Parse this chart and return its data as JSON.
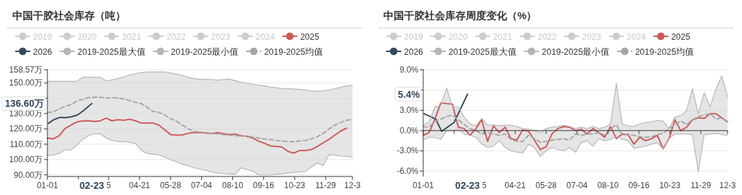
{
  "chart_data": [
    {
      "type": "line",
      "title": "中国干胶社会库存（吨）",
      "legend": "top",
      "grid": "y",
      "marker": "none",
      "x": [
        "--01-01",
        "--01-08",
        "--01-15",
        "--01-22",
        "--01-29",
        "--02-05",
        "--02-12",
        "--02-19",
        "--02-26",
        "--03-05",
        "--03-12",
        "--03-19",
        "--03-26",
        "--04-02",
        "--04-09",
        "--04-16",
        "--04-23",
        "--04-30",
        "--05-07",
        "--05-14",
        "--05-21",
        "--05-28",
        "--06-04",
        "--06-11",
        "--06-18",
        "--06-25",
        "--07-02",
        "--07-09",
        "--07-16",
        "--07-23",
        "--07-30",
        "--08-06",
        "--08-13",
        "--08-20",
        "--08-27",
        "--09-03",
        "--09-10",
        "--09-17",
        "--09-24",
        "--10-01",
        "--10-08",
        "--10-15",
        "--10-22",
        "--10-29",
        "--11-05",
        "--11-12",
        "--11-19",
        "--11-26",
        "--12-03",
        "--12-10",
        "--12-17",
        "--12-24",
        "--12-31"
      ],
      "xlim": [
        "--01-01",
        "--12-31"
      ],
      "xticks": [
        {
          "value": "--01-01",
          "label": "01-01"
        },
        {
          "value": "--02-07",
          "label": null
        },
        {
          "value": "--03-15",
          "label": "5"
        },
        {
          "value": "--04-21",
          "label": "04-21"
        },
        {
          "value": "--05-28",
          "label": "05-28"
        },
        {
          "value": "--07-04",
          "label": "07-04"
        },
        {
          "value": "--08-10",
          "label": "08-10"
        },
        {
          "value": "--09-16",
          "label": "09-16"
        },
        {
          "value": "--10-23",
          "label": "10-23"
        },
        {
          "value": "--11-29",
          "label": "11-29"
        },
        {
          "value": "--12-31",
          "label": "12-3"
        }
      ],
      "ylim": [
        88.9,
        158.57
      ],
      "yticks": [
        {
          "value": 90,
          "label": "90.00万"
        },
        {
          "value": 100,
          "label": "100.00万"
        },
        {
          "value": 110,
          "label": "110.00万"
        },
        {
          "value": 120,
          "label": "120.00万"
        },
        {
          "value": 130,
          "label": "130.00万"
        },
        {
          "value": 140,
          "label": null
        },
        {
          "value": 150,
          "label": "150.00万"
        },
        {
          "value": 158.57,
          "label": "158.57万"
        }
      ],
      "annotations": [
        "02-23",
        "136.60万"
      ],
      "series": [
        {
          "name": "2019",
          "color": "#cccccc",
          "values": [
            null,
            null,
            null,
            null,
            null,
            null,
            null,
            null,
            null,
            null,
            null,
            null,
            null,
            null,
            null,
            null,
            null,
            null,
            null,
            null,
            null,
            null,
            null,
            null,
            null,
            null,
            null,
            null,
            null,
            null,
            null,
            null,
            null,
            null,
            null,
            null,
            null,
            null,
            null,
            null,
            null,
            null,
            null,
            null,
            null,
            null,
            null,
            null,
            null,
            null,
            null,
            null,
            null
          ]
        },
        {
          "name": "2020",
          "color": "#cccccc",
          "values": [
            null,
            null,
            null,
            null,
            null,
            null,
            null,
            null,
            null,
            null,
            null,
            null,
            null,
            null,
            null,
            null,
            null,
            null,
            null,
            null,
            null,
            null,
            null,
            null,
            null,
            null,
            null,
            null,
            null,
            null,
            null,
            null,
            null,
            null,
            null,
            null,
            null,
            null,
            null,
            null,
            null,
            null,
            null,
            null,
            null,
            null,
            null,
            null,
            null,
            null,
            null,
            null,
            null
          ]
        },
        {
          "name": "2021",
          "color": "#cccccc",
          "values": [
            null,
            null,
            null,
            null,
            null,
            null,
            null,
            null,
            null,
            null,
            null,
            null,
            null,
            null,
            null,
            null,
            null,
            null,
            null,
            null,
            null,
            null,
            null,
            null,
            null,
            null,
            null,
            null,
            null,
            null,
            null,
            null,
            null,
            null,
            null,
            null,
            null,
            null,
            null,
            null,
            null,
            null,
            null,
            null,
            null,
            null,
            null,
            null,
            null,
            null,
            null,
            null,
            null
          ]
        },
        {
          "name": "2022",
          "color": "#cccccc",
          "values": [
            null,
            null,
            null,
            null,
            null,
            null,
            null,
            null,
            null,
            null,
            null,
            null,
            null,
            null,
            null,
            null,
            null,
            null,
            null,
            null,
            null,
            null,
            null,
            null,
            null,
            null,
            null,
            null,
            null,
            null,
            null,
            null,
            null,
            null,
            null,
            null,
            null,
            null,
            null,
            null,
            null,
            null,
            null,
            null,
            null,
            null,
            null,
            null,
            null,
            null,
            null,
            null,
            null
          ]
        },
        {
          "name": "2023",
          "color": "#cccccc",
          "values": [
            null,
            null,
            null,
            null,
            null,
            null,
            null,
            null,
            null,
            null,
            null,
            null,
            null,
            null,
            null,
            null,
            null,
            null,
            null,
            null,
            null,
            null,
            null,
            null,
            null,
            null,
            null,
            null,
            null,
            null,
            null,
            null,
            null,
            null,
            null,
            null,
            null,
            null,
            null,
            null,
            null,
            null,
            null,
            null,
            null,
            null,
            null,
            null,
            null,
            null,
            null,
            null,
            null
          ]
        },
        {
          "name": "2024",
          "color": "#cccccc",
          "values": [
            null,
            null,
            null,
            null,
            null,
            null,
            null,
            null,
            null,
            null,
            null,
            null,
            null,
            null,
            null,
            null,
            null,
            null,
            null,
            null,
            null,
            null,
            null,
            null,
            null,
            null,
            null,
            null,
            null,
            null,
            null,
            null,
            null,
            null,
            null,
            null,
            null,
            null,
            null,
            null,
            null,
            null,
            null,
            null,
            null,
            null,
            null,
            null,
            null,
            null,
            null,
            null,
            null
          ]
        },
        {
          "name": "2025",
          "color": "#cc5a57",
          "values": [
            114.0,
            113.5,
            115.5,
            120.2,
            122.5,
            124.5,
            125.2,
            125.3,
            124.9,
            125.2,
            127.0,
            125.3,
            126.0,
            125.6,
            126.3,
            125.3,
            123.8,
            123.8,
            123.8,
            122.5,
            119.4,
            116.3,
            115.9,
            116.0,
            117.1,
            117.6,
            117.6,
            117.4,
            116.9,
            117.6,
            116.8,
            116.3,
            116.6,
            115.5,
            115.1,
            114.0,
            112.0,
            110.6,
            108.9,
            108.5,
            108.1,
            105.3,
            104.2,
            105.9,
            105.9,
            106.5,
            108.5,
            110.9,
            113.2,
            115.9,
            118.6,
            120.5,
            null
          ]
        },
        {
          "name": "2026",
          "color": "#34495e",
          "x": [
            "--01-02",
            "--01-09",
            "--01-16",
            "--01-23",
            "--01-30",
            "--02-06",
            "--02-13",
            "--02-23"
          ],
          "values": [
            123.6,
            126.1,
            127.5,
            127.3,
            128.0,
            129.1,
            131.9,
            136.6
          ]
        },
        {
          "name": "2019-2025最大值",
          "type": "line",
          "color": "#b5b5b5",
          "values": [
            151,
            151,
            151,
            151,
            151,
            151,
            153.7,
            153.7,
            153.7,
            153.7,
            151.3,
            152,
            152.8,
            154,
            155.2,
            156,
            156.7,
            157.2,
            157.2,
            157.2,
            157.2,
            156.5,
            155.8,
            155,
            153.7,
            152.8,
            152.3,
            152.5,
            152.2,
            151.8,
            152.2,
            152.5,
            151.5,
            150.5,
            149.8,
            149.2,
            148.5,
            148,
            147.3,
            146.9,
            146.4,
            146.2,
            146,
            145.8,
            145.3,
            144.8,
            144.6,
            144.8,
            145.5,
            146.2,
            147.2,
            148,
            148.5
          ]
        },
        {
          "name": "2019-2025最小值",
          "type": "line",
          "color": "#b5b5b5",
          "values": [
            102.8,
            102.8,
            104,
            106.2,
            106.2,
            109.3,
            113.2,
            115.5,
            116.8,
            116.8,
            114,
            112.5,
            111.7,
            111.7,
            111.3,
            110.5,
            106,
            103.9,
            103.5,
            103.1,
            101.5,
            100,
            98.4,
            97,
            95.8,
            94.6,
            93.8,
            93,
            91.8,
            91.2,
            90.8,
            90.6,
            90.4,
            94.6,
            93.5,
            92.5,
            89.9,
            89.9,
            89.9,
            90.3,
            90.7,
            91.2,
            91.5,
            92,
            92.2,
            95,
            97.7,
            96.1,
            103.1,
            102.8,
            102.3,
            102,
            101.6
          ]
        },
        {
          "name": "2019-2025均值",
          "color": "#a6a6a6",
          "line_style": "dashed",
          "lower": [
            102.8,
            102.8,
            104,
            106.2,
            106.2,
            109.3,
            113.2,
            115.5,
            116.8,
            116.8,
            114,
            112.5,
            111.7,
            111.7,
            111.3,
            110.5,
            106,
            103.9,
            103.5,
            103.1,
            101.5,
            100,
            98.4,
            97,
            95.8,
            94.6,
            93.8,
            93,
            91.8,
            91.2,
            90.8,
            90.6,
            90.4,
            94.6,
            93.5,
            92.5,
            89.9,
            89.9,
            89.9,
            90.3,
            90.7,
            91.2,
            91.5,
            92,
            92.2,
            95,
            97.7,
            96.1,
            103.1,
            102.8,
            102.3,
            102,
            101.6
          ],
          "upper": [
            151,
            151,
            151,
            151,
            151,
            151,
            153.7,
            153.7,
            153.7,
            153.7,
            151.3,
            152,
            152.8,
            154,
            155.2,
            156,
            156.7,
            157.2,
            157.2,
            157.2,
            157.2,
            156.5,
            155.8,
            155,
            153.7,
            152.8,
            152.3,
            152.5,
            152.2,
            151.8,
            152.2,
            152.5,
            151.5,
            150.5,
            149.8,
            149.2,
            148.5,
            148,
            147.3,
            146.9,
            146.4,
            146.2,
            146,
            145.8,
            145.3,
            144.8,
            144.6,
            144.8,
            145.5,
            146.2,
            147.2,
            148,
            148.5
          ],
          "values": [
            130.8,
            131.1,
            133.0,
            134.6,
            135.8,
            138.1,
            139.2,
            140.4,
            140.7,
            140.7,
            140.1,
            140.4,
            140.1,
            139.6,
            138.5,
            137.3,
            136.5,
            134.2,
            131.4,
            130.8,
            129.1,
            126.7,
            124.9,
            122.5,
            120.2,
            118.3,
            117.9,
            117.4,
            117.1,
            116.8,
            116.3,
            115.9,
            115.5,
            115.5,
            115.2,
            114.8,
            114.0,
            113.5,
            113.1,
            112.4,
            112.1,
            111.7,
            111.7,
            112.1,
            112.4,
            113.5,
            114.8,
            117.1,
            119.9,
            122.5,
            124.1,
            125.6,
            126.2
          ]
        }
      ]
    },
    {
      "type": "line",
      "title": "中国干胶社会库存周度变化（%）",
      "legend": "top",
      "grid": "y",
      "marker": "none",
      "x": [
        "--01-01",
        "--01-08",
        "--01-15",
        "--01-22",
        "--01-29",
        "--02-05",
        "--02-12",
        "--02-19",
        "--02-26",
        "--03-05",
        "--03-12",
        "--03-19",
        "--03-26",
        "--04-02",
        "--04-09",
        "--04-16",
        "--04-23",
        "--04-30",
        "--05-07",
        "--05-14",
        "--05-21",
        "--05-28",
        "--06-04",
        "--06-11",
        "--06-18",
        "--06-25",
        "--07-02",
        "--07-09",
        "--07-16",
        "--07-23",
        "--07-30",
        "--08-06",
        "--08-13",
        "--08-20",
        "--08-27",
        "--09-03",
        "--09-10",
        "--09-17",
        "--09-24",
        "--10-01",
        "--10-08",
        "--10-15",
        "--10-22",
        "--10-29",
        "--11-05",
        "--11-12",
        "--11-19",
        "--11-26",
        "--12-03",
        "--12-10",
        "--12-17",
        "--12-24",
        "--12-31"
      ],
      "xlim": [
        "--01-01",
        "--12-31"
      ],
      "xticks": [
        {
          "value": "--01-01",
          "label": "01-01"
        },
        {
          "value": "--02-07",
          "label": null
        },
        {
          "value": "--03-15",
          "label": "5"
        },
        {
          "value": "--04-21",
          "label": "04-21"
        },
        {
          "value": "--05-28",
          "label": "05-28"
        },
        {
          "value": "--07-04",
          "label": "07-04"
        },
        {
          "value": "--08-10",
          "label": "08-10"
        },
        {
          "value": "--09-16",
          "label": "09-16"
        },
        {
          "value": "--10-23",
          "label": "10-23"
        },
        {
          "value": "--11-29",
          "label": "11-29"
        },
        {
          "value": "--12-31",
          "label": "12-3"
        }
      ],
      "ylim": [
        -6.8,
        9
      ],
      "yticks": [
        {
          "value": -6,
          "label": "-6.0%"
        },
        {
          "value": -3,
          "label": "-3.0%"
        },
        {
          "value": 0,
          "label": "0.0%"
        },
        {
          "value": 3,
          "label": "3.0%"
        },
        {
          "value": 6,
          "label": null
        },
        {
          "value": 9,
          "label": "9.0%"
        }
      ],
      "annotations": [
        "02-23",
        "5.4%"
      ],
      "series": [
        {
          "name": "2019",
          "color": "#cccccc",
          "values": [
            null,
            null,
            null,
            null,
            null,
            null,
            null,
            null,
            null,
            null,
            null,
            null,
            null,
            null,
            null,
            null,
            null,
            null,
            null,
            null,
            null,
            null,
            null,
            null,
            null,
            null,
            null,
            null,
            null,
            null,
            null,
            null,
            null,
            null,
            null,
            null,
            null,
            null,
            null,
            null,
            null,
            null,
            null,
            null,
            null,
            null,
            null,
            null,
            null,
            null,
            null,
            null,
            null
          ]
        },
        {
          "name": "2020",
          "color": "#cccccc",
          "values": [
            null,
            null,
            null,
            null,
            null,
            null,
            null,
            null,
            null,
            null,
            null,
            null,
            null,
            null,
            null,
            null,
            null,
            null,
            null,
            null,
            null,
            null,
            null,
            null,
            null,
            null,
            null,
            null,
            null,
            null,
            null,
            null,
            null,
            null,
            null,
            null,
            null,
            null,
            null,
            null,
            null,
            null,
            null,
            null,
            null,
            null,
            null,
            null,
            null,
            null,
            null,
            null,
            null
          ]
        },
        {
          "name": "2021",
          "color": "#cccccc",
          "values": [
            null,
            null,
            null,
            null,
            null,
            null,
            null,
            null,
            null,
            null,
            null,
            null,
            null,
            null,
            null,
            null,
            null,
            null,
            null,
            null,
            null,
            null,
            null,
            null,
            null,
            null,
            null,
            null,
            null,
            null,
            null,
            null,
            null,
            null,
            null,
            null,
            null,
            null,
            null,
            null,
            null,
            null,
            null,
            null,
            null,
            null,
            null,
            null,
            null,
            null,
            null,
            null,
            null
          ]
        },
        {
          "name": "2022",
          "color": "#cccccc",
          "values": [
            null,
            null,
            null,
            null,
            null,
            null,
            null,
            null,
            null,
            null,
            null,
            null,
            null,
            null,
            null,
            null,
            null,
            null,
            null,
            null,
            null,
            null,
            null,
            null,
            null,
            null,
            null,
            null,
            null,
            null,
            null,
            null,
            null,
            null,
            null,
            null,
            null,
            null,
            null,
            null,
            null,
            null,
            null,
            null,
            null,
            null,
            null,
            null,
            null,
            null,
            null,
            null,
            null
          ]
        },
        {
          "name": "2023",
          "color": "#cccccc",
          "values": [
            null,
            null,
            null,
            null,
            null,
            null,
            null,
            null,
            null,
            null,
            null,
            null,
            null,
            null,
            null,
            null,
            null,
            null,
            null,
            null,
            null,
            null,
            null,
            null,
            null,
            null,
            null,
            null,
            null,
            null,
            null,
            null,
            null,
            null,
            null,
            null,
            null,
            null,
            null,
            null,
            null,
            null,
            null,
            null,
            null,
            null,
            null,
            null,
            null,
            null,
            null,
            null,
            null
          ]
        },
        {
          "name": "2024",
          "color": "#cccccc",
          "values": [
            null,
            null,
            null,
            null,
            null,
            null,
            null,
            null,
            null,
            null,
            null,
            null,
            null,
            null,
            null,
            null,
            null,
            null,
            null,
            null,
            null,
            null,
            null,
            null,
            null,
            null,
            null,
            null,
            null,
            null,
            null,
            null,
            null,
            null,
            null,
            null,
            null,
            null,
            null,
            null,
            null,
            null,
            null,
            null,
            null,
            null,
            null,
            null,
            null,
            null,
            null,
            null,
            null
          ]
        },
        {
          "name": "2025",
          "color": "#cc5a57",
          "values": [
            -0.7,
            -0.3,
            1.7,
            4.1,
            4.0,
            3.9,
            0.5,
            0.3,
            -0.7,
            0.3,
            1.6,
            -1.6,
            0.7,
            -0.3,
            0.5,
            -1.2,
            -1.4,
            0.1,
            -0.1,
            -1.4,
            -2.8,
            -2.4,
            -0.5,
            0.3,
            0.6,
            0.5,
            0.0,
            0.2,
            -0.5,
            0.3,
            -0.3,
            -1.0,
            0.6,
            -1.2,
            -0.5,
            -0.6,
            -2.0,
            -1.0,
            -1.5,
            -1.2,
            -0.7,
            -2.7,
            -1.2,
            1.6,
            0.0,
            0.5,
            1.6,
            1.9,
            1.8,
            2.5,
            2.5,
            1.9,
            1.3
          ]
        },
        {
          "name": "2026",
          "color": "#34495e",
          "x": [
            "--01-02",
            "--01-16",
            "--01-23",
            "--02-07",
            "--02-23"
          ],
          "values": [
            2.5,
            1.7,
            -0.1,
            1.2,
            5.4
          ]
        },
        {
          "name": "2019-2025最大值",
          "type": "line",
          "color": "#b5b5b5",
          "values": [
            0.8,
            1.3,
            3.5,
            3.7,
            6.3,
            3.5,
            3.5,
            2.0,
            1.0,
            0.7,
            1.8,
            0.8,
            0.8,
            0.7,
            0.8,
            0.8,
            0.6,
            0.3,
            0.2,
            0.0,
            -0.3,
            0.3,
            0.5,
            0.6,
            0.8,
            0.6,
            0.3,
            0.5,
            0.3,
            0.6,
            0.3,
            0.5,
            1.0,
            7.0,
            1.0,
            0.7,
            0.6,
            1.0,
            1.2,
            1.3,
            1.5,
            1.4,
            0.3,
            2.0,
            2.2,
            3.0,
            6.2,
            2.5,
            5.6,
            3.5,
            6.1,
            8.1,
            5.0
          ]
        },
        {
          "name": "2019-2025最小值",
          "type": "line",
          "color": "#b5b5b5",
          "values": [
            -1.4,
            -1.0,
            -1.0,
            -1.3,
            0.0,
            0.0,
            0.2,
            -0.5,
            -0.7,
            -1.0,
            -2.0,
            -2.5,
            -2.3,
            -1.5,
            -2.5,
            -3.0,
            -3.2,
            -3.3,
            -2.0,
            -2.5,
            -3.8,
            -3.0,
            -2.5,
            -2.8,
            -3.0,
            -2.5,
            -3.2,
            -1.8,
            -1.5,
            -2.3,
            -1.2,
            -1.5,
            -1.3,
            -0.8,
            -1.3,
            -1.5,
            -2.6,
            -2.5,
            -2.3,
            -2.0,
            -1.8,
            -2.7,
            -1.2,
            -0.5,
            -0.5,
            -0.5,
            -0.6,
            -6.1,
            -0.6,
            -0.5,
            -0.4,
            -0.6,
            -0.7
          ]
        },
        {
          "name": "2019-2025均值",
          "color": "#a6a6a6",
          "line_style": "dashed",
          "lower": [
            -1.4,
            -1.0,
            -1.0,
            -1.3,
            0.0,
            0.0,
            0.2,
            -0.5,
            -0.7,
            -1.0,
            -2.0,
            -2.5,
            -2.3,
            -1.5,
            -2.5,
            -3.0,
            -3.2,
            -3.3,
            -2.0,
            -2.5,
            -3.8,
            -3.0,
            -2.5,
            -2.8,
            -3.0,
            -2.5,
            -3.2,
            -1.8,
            -1.5,
            -2.3,
            -1.2,
            -1.5,
            -1.3,
            -0.8,
            -1.3,
            -1.5,
            -2.6,
            -2.5,
            -2.3,
            -2.0,
            -1.8,
            -2.7,
            -1.2,
            -0.5,
            -0.5,
            -0.5,
            -0.6,
            -6.1,
            -0.6,
            -0.5,
            -0.4,
            -0.6,
            -0.7
          ],
          "upper": [
            0.8,
            1.3,
            3.5,
            3.7,
            6.3,
            3.5,
            3.5,
            2.0,
            1.0,
            0.7,
            1.8,
            0.8,
            0.8,
            0.7,
            0.8,
            0.8,
            0.6,
            0.3,
            0.2,
            0.0,
            -0.3,
            0.3,
            0.5,
            0.6,
            0.8,
            0.6,
            0.3,
            0.5,
            0.3,
            0.6,
            0.3,
            0.5,
            1.0,
            7.0,
            1.0,
            0.7,
            0.6,
            1.0,
            1.2,
            1.3,
            1.5,
            1.4,
            0.3,
            2.0,
            2.2,
            3.0,
            6.2,
            2.5,
            5.6,
            3.5,
            6.1,
            8.1,
            5.0
          ],
          "values": [
            0.6,
            0.5,
            1.4,
            1.7,
            2.1,
            2.3,
            1.6,
            0.9,
            0.3,
            0.0,
            -0.5,
            -0.3,
            -0.5,
            -0.7,
            -0.5,
            -1.3,
            -1.6,
            -1.6,
            -0.7,
            -1.2,
            -1.7,
            -1.6,
            -1.4,
            -1.3,
            -1.2,
            -1.4,
            -0.5,
            -0.7,
            -0.5,
            -0.5,
            -0.3,
            -0.7,
            0.2,
            0.9,
            -0.7,
            -0.5,
            -0.7,
            -0.9,
            -1.0,
            -0.9,
            -0.6,
            -0.4,
            0.3,
            0.9,
            1.4,
            0.9,
            1.6,
            2.1,
            2.3,
            2.5,
            1.7,
            1.9,
            1.2
          ]
        }
      ]
    }
  ]
}
